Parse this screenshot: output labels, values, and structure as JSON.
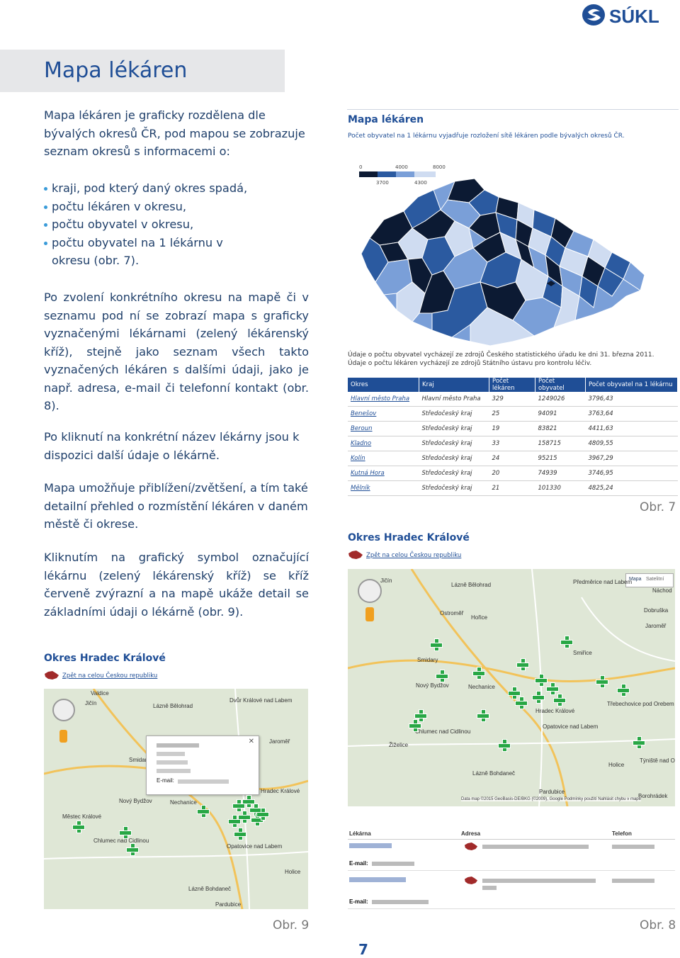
{
  "logo": {
    "text": "SÚKL",
    "color": "#1f4e96"
  },
  "title": "Mapa lékáren",
  "intro": "Mapa lékáren je graficky rozdělena dle bývalých okresů ČR, pod mapou se zobrazuje seznam okresů s informacemi o:",
  "bullets": [
    "kraji, pod který daný okres spadá,",
    "počtu lékáren v okresu,",
    "počtu obyvatel v okresu,",
    "počtu obyvatel na 1 lékárnu v okresu (obr. 7)."
  ],
  "para2": "Po zvolení konkrétního okresu na mapě či v seznamu pod ní se zobrazí mapa s graficky vyznačenými lékárnami (zelený lékárenský kříž), stejně jako seznam všech takto vyznačených lékáren s dalšími údaji, jako je např. adresa, e-mail či telefonní kontakt (obr. 8).",
  "para3": "Po kliknutí na konkrétní název lékárny jsou k dispozici další údaje o lékárně.",
  "para4": "Mapa umožňuje přiblížení/zvětšení, a tím také detailní přehled o rozmístění lékáren v daném městě či okrese.",
  "para5": "Kliknutím na grafický symbol označující lékárnu (zelený lékárenský kříž) se kříž červeně zvýrazní a na mapě ukáže detail se základními údaji o lékárně (obr. 9).",
  "fig7": {
    "title": "Mapa lékáren",
    "subtitle": "Počet obyvatel na 1 lékárnu vyjadřuje rozložení sítě lékáren podle bývalých okresů ČR.",
    "legend": {
      "top": [
        "0",
        "4000",
        "8000"
      ],
      "bottom": [
        "3700",
        "4300"
      ]
    },
    "notes": [
      "Údaje o počtu obyvatel vycházejí ze zdrojů Českého statistického úřadu ke dni 31. března 2011.",
      "Údaje o počtu lékáren vycházejí ze zdrojů Státního ústavu pro kontrolu léčiv."
    ],
    "table": {
      "headers": [
        "Okres",
        "Kraj",
        "Počet lékáren",
        "Počet obyvatel",
        "Počet obyvatel na 1 lékárnu"
      ],
      "rows": [
        [
          "Hlavní město Praha",
          "Hlavní město Praha",
          "329",
          "1249026",
          "3796,43"
        ],
        [
          "Benešov",
          "Středočeský kraj",
          "25",
          "94091",
          "3763,64"
        ],
        [
          "Beroun",
          "Středočeský kraj",
          "19",
          "83821",
          "4411,63"
        ],
        [
          "Kladno",
          "Středočeský kraj",
          "33",
          "158715",
          "4809,55"
        ],
        [
          "Kolín",
          "Středočeský kraj",
          "24",
          "95215",
          "3967,29"
        ],
        [
          "Kutná Hora",
          "Středočeský kraj",
          "20",
          "74939",
          "3746,95"
        ],
        [
          "Mělník",
          "Středočeský kraj",
          "21",
          "101330",
          "4825,24"
        ]
      ]
    },
    "label": "Obr. 7"
  },
  "fig8": {
    "title": "Okres Hradec Králové",
    "back": "Zpět na celou Českou republiku",
    "map_btns": [
      "Mapa",
      "Satelitní"
    ],
    "places": [
      "Jičín",
      "Lázně Bělohrad",
      "Předměrice nad Labem",
      "Náchod",
      "Ostroměř",
      "Hořice",
      "Jaroměř",
      "Smiřice",
      "Smidary",
      "Nový Bydžov",
      "Nechanice",
      "Hradec Králové",
      "Opatovice nad Labem",
      "Holice",
      "Chlumec nad Cidlinou",
      "Lázně Bohdaneč",
      "Žiželice",
      "Pardubice",
      "Borohrádek",
      "Týniště nad Orlicí",
      "Třebechovice pod Orebem",
      "Dobruška"
    ],
    "copyright": "Data map ©2015 GeoBasis-DE/BKG (©2009), Google  Podmínky použití  Nahlásit chybu v mapě",
    "table_headers": [
      "Lékárna",
      "Adresa",
      "Telefon"
    ],
    "email_label": "E-mail:",
    "label": "Obr. 8"
  },
  "fig9": {
    "title": "Okres Hradec Králové",
    "back": "Zpět na celou Českou republiku",
    "places": [
      "Valdice",
      "Jičín",
      "Lázně Bělohrad",
      "Dvůr Králové nad Labem",
      "Jaroměř",
      "Smidary",
      "Nový Bydžov",
      "Nechanice",
      "Hradec Králové",
      "Městec Králové",
      "Chlumec nad Cidlinou",
      "Opatovice nad Labem",
      "Lázně Bohdaneč",
      "Pardubice",
      "Holice"
    ],
    "popup_email_label": "E-mail:",
    "label": "Obr. 9"
  },
  "page_number": "7",
  "colors": {
    "accent": "#1f4e96",
    "bullet": "#3a9bd9",
    "cross": "#28a745",
    "map_dark": "#0c1a33"
  }
}
